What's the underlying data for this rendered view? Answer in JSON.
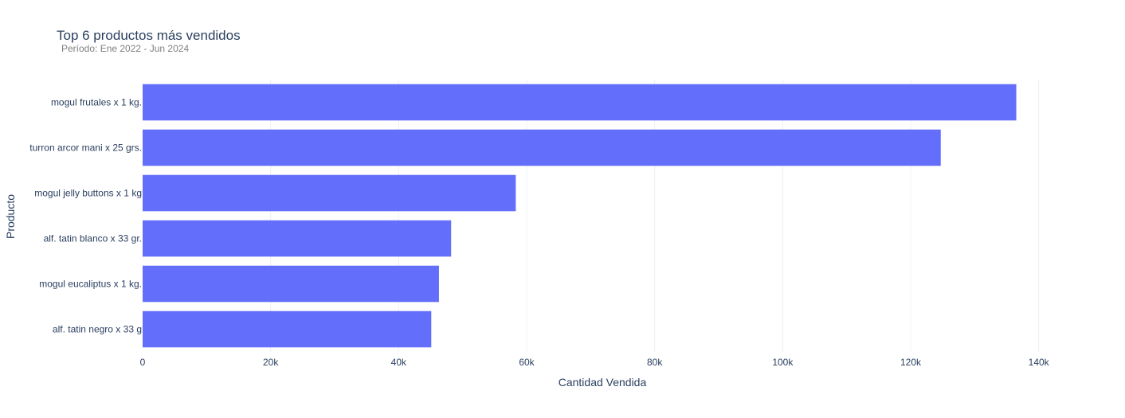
{
  "chart_data": {
    "type": "bar",
    "orientation": "horizontal",
    "title": "Top 6 productos más vendidos",
    "subtitle": "Período: Ene 2022 - Jun 2024",
    "xlabel": "Cantidad Vendida",
    "ylabel": "Producto",
    "xlim": [
      0,
      150000
    ],
    "x_ticks": [
      0,
      20000,
      40000,
      60000,
      80000,
      100000,
      120000,
      140000
    ],
    "x_tick_labels": [
      "0",
      "20k",
      "40k",
      "60k",
      "80k",
      "100k",
      "120k",
      "140k"
    ],
    "grid": true,
    "bar_color": "#636efa",
    "categories": [
      "mogul frutales x 1 kg.",
      "turron arcor mani x 25 grs.",
      "mogul jelly buttons x 1 kg",
      "alf. tatin blanco x 33  gr.",
      "mogul eucaliptus x 1 kg.",
      "alf. tatin negro x 33 g"
    ],
    "values": [
      136500,
      124700,
      58300,
      48200,
      46300,
      45100
    ]
  }
}
